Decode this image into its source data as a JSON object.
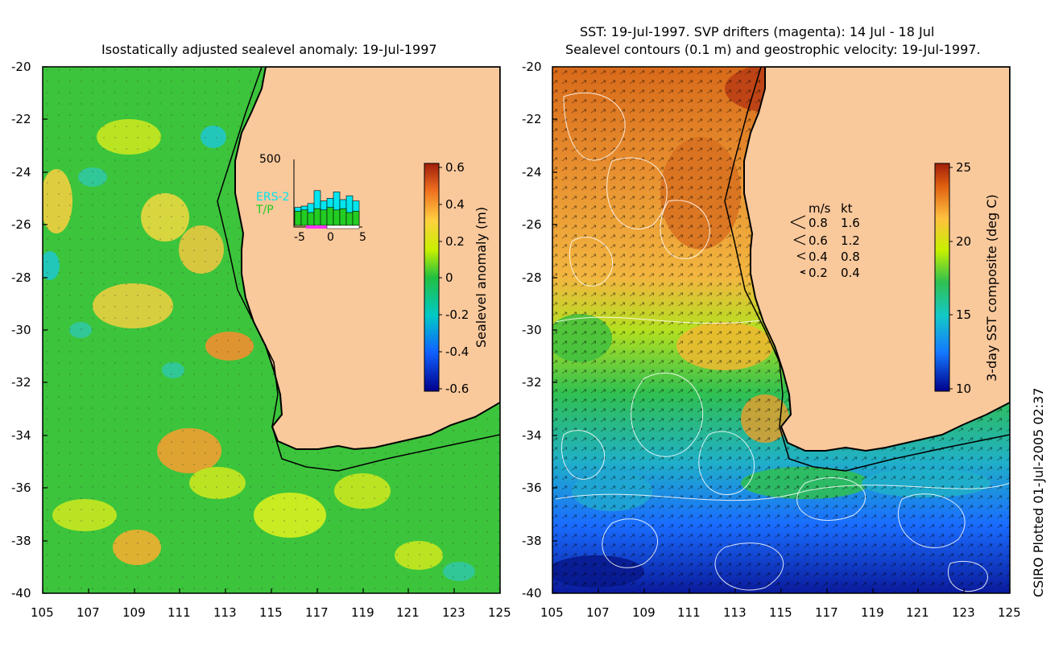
{
  "left_panel": {
    "title": "Isostatically adjusted sealevel anomaly: 19-Jul-1997",
    "lat_ticks": [
      "-20",
      "-22",
      "-24",
      "-26",
      "-28",
      "-30",
      "-32",
      "-34",
      "-36",
      "-38",
      "-40"
    ],
    "lon_ticks": [
      "105",
      "107",
      "109",
      "111",
      "113",
      "115",
      "117",
      "119",
      "121",
      "123",
      "125"
    ],
    "colorbar": {
      "label": "Sealevel anomaly (m)",
      "ticks": [
        "0.6",
        "0.4",
        "0.2",
        "0",
        "-0.2",
        "-0.4",
        "-0.6"
      ],
      "range": [
        -0.6,
        0.6
      ]
    },
    "inset": {
      "ymax_label": "500",
      "series_labels": [
        "ERS-2",
        "T/P"
      ],
      "x_ticks": [
        "-5",
        "0",
        "5"
      ],
      "ers2_values": [
        140,
        150,
        170,
        270,
        190,
        210,
        260,
        200,
        230,
        190
      ],
      "tp_values": [
        110,
        120,
        100,
        130,
        120,
        140,
        120,
        130,
        100,
        110
      ],
      "ymax": 500,
      "colors": {
        "ers2": "#00e5ee",
        "tp": "#22cc22",
        "window": "#ff33ff"
      }
    }
  },
  "right_panel": {
    "title_line1": "SST: 19-Jul-1997. SVP drifters (magenta): 14 Jul - 18 Jul",
    "title_line2": "Sealevel contours (0.1 m) and geostrophic velocity: 19-Jul-1997.",
    "lat_ticks": [
      "-20",
      "-22",
      "-24",
      "-26",
      "-28",
      "-30",
      "-32",
      "-34",
      "-36",
      "-38",
      "-40"
    ],
    "lon_ticks": [
      "105",
      "107",
      "109",
      "111",
      "113",
      "115",
      "117",
      "119",
      "121",
      "123",
      "125"
    ],
    "colorbar": {
      "label": "3-day SST composite (deg C)",
      "ticks": [
        "25",
        "20",
        "15",
        "10"
      ],
      "range": [
        10,
        25
      ]
    },
    "velocity_key": {
      "header_ms": "m/s",
      "header_kt": "kt",
      "rows": [
        {
          "ms": "0.8",
          "kt": "1.6"
        },
        {
          "ms": "0.6",
          "kt": "1.2"
        },
        {
          "ms": "0.4",
          "kt": "0.8"
        },
        {
          "ms": "0.2",
          "kt": "0.4"
        }
      ]
    }
  },
  "credit": "CSIRO Plotted 01-Jul-2005 02:37",
  "colors": {
    "land": "#f9c89b",
    "coast": "#000000"
  }
}
